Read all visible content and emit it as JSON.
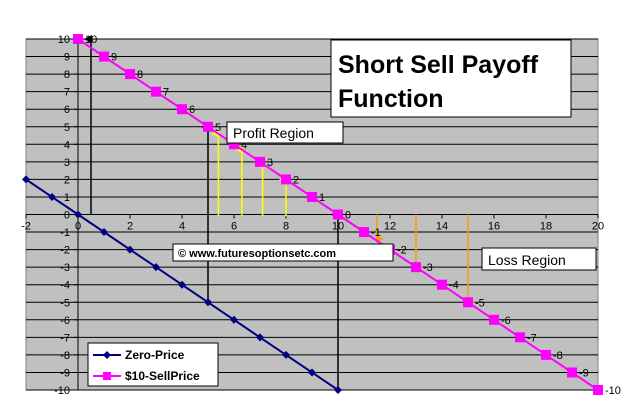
{
  "chart_data": {
    "type": "line",
    "title_line1": "Short Sell Payoff",
    "title_line2": "Function",
    "xlim": [
      -2,
      20
    ],
    "ylim": [
      -10,
      10
    ],
    "x_ticks": [
      -2,
      0,
      2,
      4,
      6,
      8,
      10,
      12,
      14,
      16,
      18,
      20
    ],
    "y_ticks": [
      10,
      9,
      8,
      7,
      6,
      5,
      4,
      3,
      2,
      1,
      0,
      -1,
      -2,
      -3,
      -4,
      -5,
      -6,
      -7,
      -8,
      -9,
      -10
    ],
    "grid": true,
    "legend_placement": "bottom-left",
    "series": [
      {
        "name": "Zero-Price",
        "color": "#000080",
        "marker": "diamond",
        "x": [
          -2,
          -1,
          0,
          1,
          2,
          3,
          4,
          5,
          6,
          7,
          8,
          9,
          10
        ],
        "y": [
          2,
          1,
          0,
          -1,
          -2,
          -3,
          -4,
          -5,
          -6,
          -7,
          -8,
          -9,
          -10
        ]
      },
      {
        "name": "$10-SellPrice",
        "color": "#ff00ff",
        "marker": "square",
        "x": [
          0,
          1,
          2,
          3,
          4,
          5,
          6,
          7,
          8,
          9,
          10,
          11,
          12,
          13,
          14,
          15,
          16,
          17,
          18,
          19,
          20
        ],
        "y": [
          10,
          9,
          8,
          7,
          6,
          5,
          4,
          3,
          2,
          1,
          0,
          -1,
          -2,
          -3,
          -4,
          -5,
          -6,
          -7,
          -8,
          -9,
          -10
        ],
        "data_labels": [
          "10",
          "9",
          "8",
          "7",
          "6",
          "5",
          "4",
          "3",
          "2",
          "1",
          "0",
          "-1",
          "-2",
          "-3",
          "-4",
          "-5",
          "-6",
          "-7",
          "-8",
          "-9",
          "-10"
        ]
      }
    ],
    "annotations": {
      "profit_region": "Profit Region",
      "loss_region": "Loss Region",
      "copyright": "© www.futuresoptionsetc.com"
    },
    "black_arrows": [
      {
        "x": 0.5,
        "y_from": 0,
        "y_to": 10
      },
      {
        "x": 5,
        "y_from": -5,
        "y_to": 5
      },
      {
        "x": 10,
        "y_from": -10,
        "y_to": 0
      }
    ],
    "yellow_arrows": [
      {
        "x": 5.4,
        "y_from": -0.1,
        "y_to": 4.6
      },
      {
        "x": 6.3,
        "y_from": -0.1,
        "y_to": 3.7
      },
      {
        "x": 7.1,
        "y_from": -0.1,
        "y_to": 2.9
      },
      {
        "x": 8.0,
        "y_from": -0.1,
        "y_to": 2.0
      }
    ],
    "orange_arrows": [
      {
        "x": 11.5,
        "y_from": 0,
        "y_to": -1.4
      },
      {
        "x": 13,
        "y_from": 0,
        "y_to": -3
      },
      {
        "x": 15,
        "y_from": 0,
        "y_to": -5
      }
    ],
    "colors": {
      "plot_background": "#c0c0c0",
      "gridline": "#000000",
      "yellow_arrow": "#ffff00",
      "orange_arrow": "#ff9900",
      "black_arrow": "#000000"
    }
  }
}
